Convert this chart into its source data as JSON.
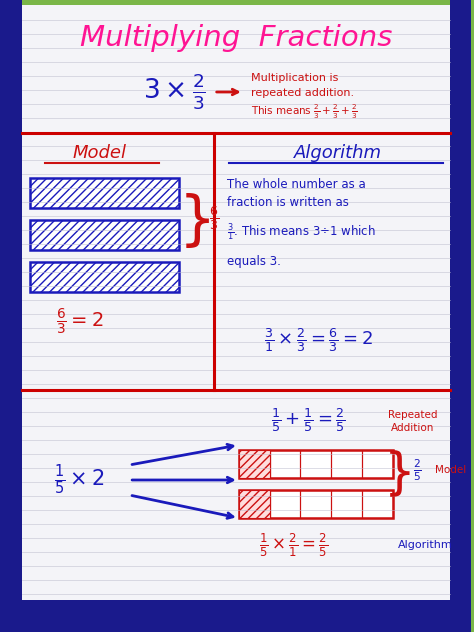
{
  "title": "Multiplying  Fractions",
  "title_color": "#FF1493",
  "paper_color": "#F4F4F8",
  "border_color": "#1A1A8C",
  "red_line_color": "#CC0000",
  "blue_text_color": "#1A1ABB",
  "red_text_color": "#CC1111",
  "green_border": "#7AB648",
  "line_color": "#BBBBCC",
  "section1_note1": "Multiplication is",
  "section1_note2": "repeated addition.",
  "model_label": "Model",
  "algorithm_label": "Algorithm",
  "algo_text1": "The whole number as a",
  "algo_text2": "fraction is written as",
  "algo_text4": "equals 3.",
  "bottom_label1": "Repeated",
  "bottom_label2": "Addition",
  "bottom_model_label": "Model",
  "bottom_algo_label": "Algorithm"
}
